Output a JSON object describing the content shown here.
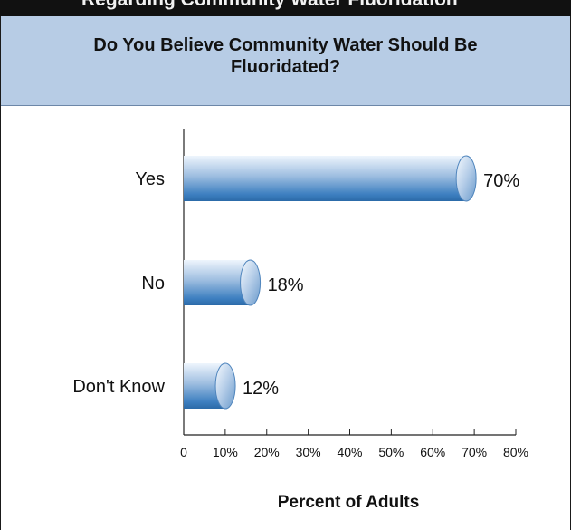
{
  "banner": {
    "text": "Regarding Community Water Fluoridation"
  },
  "chart_data": {
    "type": "bar",
    "orientation": "horizontal",
    "title": "Do You Believe Community Water Should Be Fluoridated?",
    "categories": [
      "Yes",
      "No",
      "Don't Know"
    ],
    "values": [
      70,
      18,
      12
    ],
    "value_labels": [
      "70%",
      "18%",
      "12%"
    ],
    "xlabel": "Percent of Adults",
    "ylabel": "",
    "xlim": [
      0,
      80
    ],
    "xticks": [
      0,
      10,
      20,
      30,
      40,
      50,
      60,
      70,
      80
    ],
    "xtick_labels": [
      "0",
      "10%",
      "20%",
      "30%",
      "40%",
      "50%",
      "60%",
      "70%",
      "80%"
    ],
    "grid": false,
    "legend": "none",
    "colors": {
      "bar_light": "#dce9f7",
      "bar_mid": "#8fb3da",
      "bar_dark": "#2f6fb0",
      "title_panel": "#b7cce5",
      "axis": "#222222"
    }
  }
}
